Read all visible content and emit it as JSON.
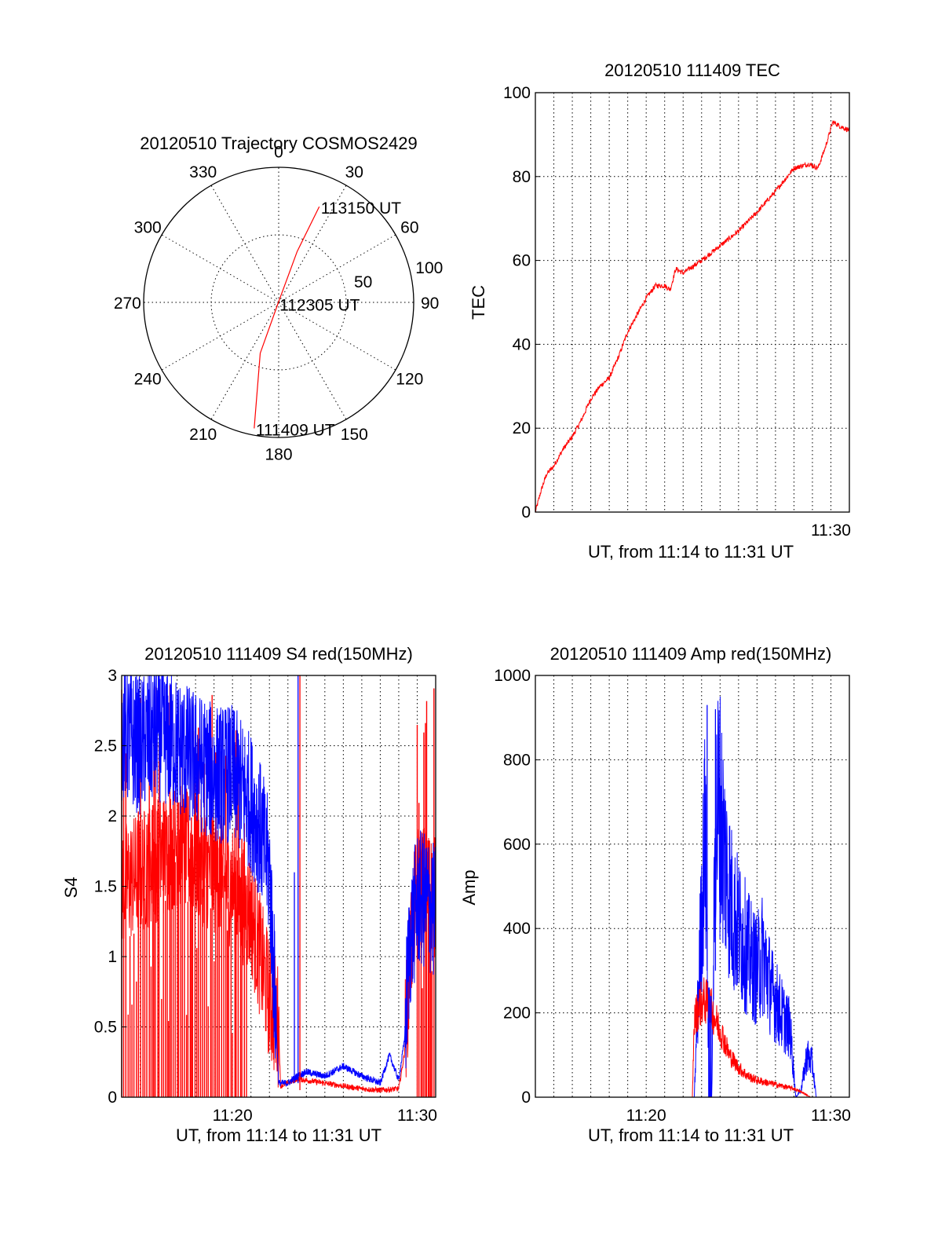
{
  "colors": {
    "red": "#ff0000",
    "blue": "#0000ff",
    "axis": "#000000",
    "background": "#ffffff"
  },
  "chart_data": [
    {
      "id": "trajectory",
      "type": "polar-line",
      "title": "20120510 Trajectory COSMOS2429",
      "angle_labels": [
        "0",
        "30",
        "60",
        "90",
        "120",
        "150",
        "180",
        "210",
        "240",
        "270",
        "300",
        "330"
      ],
      "radius_labels": [
        "50",
        "100"
      ],
      "rlim": [
        0,
        100
      ],
      "angle_convention": "azimuth, 0 at top, clockwise",
      "radius_meaning": "zenith angle",
      "grid": true,
      "series": [
        {
          "color": "#ff0000",
          "points": [
            {
              "azimuth": 191,
              "radius": 95,
              "label": "111409 UT"
            },
            {
              "azimuth": 200,
              "radius": 40
            },
            {
              "azimuth": 210,
              "radius": 1,
              "label": "112305 UT"
            },
            {
              "azimuth": 20,
              "radius": 40
            },
            {
              "azimuth": 23,
              "radius": 77,
              "label": "113150 UT"
            }
          ]
        }
      ]
    },
    {
      "id": "tec",
      "type": "line",
      "title": "20120510 111409 TEC",
      "xlabel": "UT, from 11:14 to 11:31 UT",
      "ylabel": "TEC",
      "x_unit": "minutes after 11:14 UT",
      "xlim": [
        0,
        17
      ],
      "ylim": [
        0,
        100
      ],
      "yticks": [
        0,
        20,
        40,
        60,
        80,
        100
      ],
      "xticks": [
        {
          "value": 16,
          "label": "11:30"
        }
      ],
      "grid": true,
      "series": [
        {
          "color": "#ff0000",
          "noise": 0.6,
          "x": [
            0,
            0.3,
            0.6,
            1,
            1.5,
            2,
            2.5,
            3,
            3.5,
            4,
            4.5,
            5,
            5.5,
            6,
            6.5,
            7,
            7.3,
            7.6,
            8,
            9,
            10,
            11,
            12,
            13,
            14,
            14.8,
            15.3,
            15.7,
            16.1,
            16.5,
            17
          ],
          "y": [
            0,
            5,
            9,
            11,
            15,
            18,
            22,
            27,
            30,
            32,
            37,
            43,
            47,
            51,
            54,
            54,
            53,
            58,
            57,
            60,
            63.5,
            67,
            71.5,
            76.5,
            82,
            83,
            82,
            87,
            93,
            92,
            91
          ]
        }
      ]
    },
    {
      "id": "s4",
      "type": "line",
      "title": "20120510 111409 S4 red(150MHz)",
      "xlabel": "UT, from 11:14 to 11:31 UT",
      "ylabel": "S4",
      "x_unit": "minutes after 11:14 UT",
      "xlim": [
        0,
        17
      ],
      "ylim": [
        0,
        3
      ],
      "yticks": [
        0,
        0.5,
        1,
        1.5,
        2,
        2.5,
        3
      ],
      "ytick_labels": [
        "0",
        "0.5",
        "1",
        "1.5",
        "2",
        "2.5",
        "3"
      ],
      "xticks": [
        {
          "value": 6,
          "label": "11:20"
        },
        {
          "value": 16,
          "label": "11:30"
        }
      ],
      "grid": true,
      "series": [
        {
          "color": "#ff0000",
          "x": [
            0,
            1,
            2,
            3,
            4,
            5,
            6,
            7,
            7.5,
            8,
            8.5,
            8.6,
            9,
            9.5,
            10,
            11,
            12,
            13,
            14,
            15,
            15.3,
            15.6,
            16,
            16.5,
            17
          ],
          "y": [
            1.5,
            1.6,
            1.7,
            1.8,
            1.7,
            1.6,
            1.5,
            1.3,
            1,
            0.7,
            0.5,
            0.08,
            0.1,
            0.13,
            0.12,
            0.1,
            0.08,
            0.06,
            0.05,
            0.06,
            0.3,
            1,
            1.5,
            1.5,
            1.4
          ],
          "spike_zones": [
            [
              0,
              6.8,
              0.45,
              3
            ],
            [
              16,
              17,
              0.55,
              3
            ]
          ]
        },
        {
          "color": "#0000ff",
          "x": [
            0,
            1,
            2,
            3,
            4,
            5,
            6,
            7,
            7.5,
            8,
            8.5,
            9,
            9.5,
            10,
            11,
            12,
            13,
            14,
            14.5,
            15,
            15.3,
            15.6,
            16,
            16.5,
            17
          ],
          "y": [
            2.6,
            2.5,
            2.6,
            2.5,
            2.4,
            2.3,
            2.3,
            2.1,
            1.9,
            1.6,
            0.1,
            0.1,
            0.15,
            0.18,
            0.15,
            0.22,
            0.15,
            0.1,
            0.3,
            0.12,
            0.4,
            1.1,
            1.4,
            1.4,
            1.3
          ],
          "spikes": [
            {
              "x": 9.35,
              "ytop": 1.6
            },
            {
              "x": 9.55,
              "ytop": 3
            }
          ]
        }
      ]
    },
    {
      "id": "amp",
      "type": "line",
      "title": "20120510 111409 Amp red(150MHz)",
      "xlabel": "UT, from 11:14 to 11:31 UT",
      "ylabel": "Amp",
      "x_unit": "minutes after 11:14 UT",
      "xlim": [
        0,
        17
      ],
      "ylim": [
        0,
        1000
      ],
      "yticks": [
        0,
        200,
        400,
        600,
        800,
        1000
      ],
      "xticks": [
        {
          "value": 6,
          "label": "11:20"
        },
        {
          "value": 16,
          "label": "11:30"
        }
      ],
      "grid": true,
      "series": [
        {
          "color": "#ff0000",
          "x": [
            0,
            8.5,
            8.6,
            8.8,
            9.1,
            9.4,
            9.6,
            9.8,
            10.1,
            10.5,
            11,
            11.5,
            12,
            12.5,
            13,
            13.5,
            14,
            14.5,
            14.9,
            15,
            17
          ],
          "y": [
            0,
            0,
            180,
            210,
            230,
            220,
            200,
            180,
            150,
            100,
            70,
            50,
            40,
            35,
            30,
            25,
            20,
            10,
            0,
            0,
            0
          ]
        },
        {
          "color": "#0000ff",
          "x": [
            0,
            8.6,
            8.9,
            9.2,
            9.35,
            9.45,
            9.55,
            9.75,
            9.95,
            10.3,
            10.7,
            11.2,
            11.6,
            12,
            12.3,
            12.8,
            13.3,
            13.8,
            14.1,
            14.4,
            14.7,
            15,
            15.2,
            17
          ],
          "y": [
            0,
            0,
            330,
            640,
            200,
            0,
            0,
            640,
            700,
            550,
            430,
            380,
            330,
            300,
            340,
            250,
            200,
            160,
            0,
            20,
            100,
            80,
            0,
            0
          ],
          "peaks": [
            {
              "x": 9.3,
              "y": 930
            },
            {
              "x": 9.75,
              "y": 920
            }
          ]
        }
      ]
    }
  ]
}
